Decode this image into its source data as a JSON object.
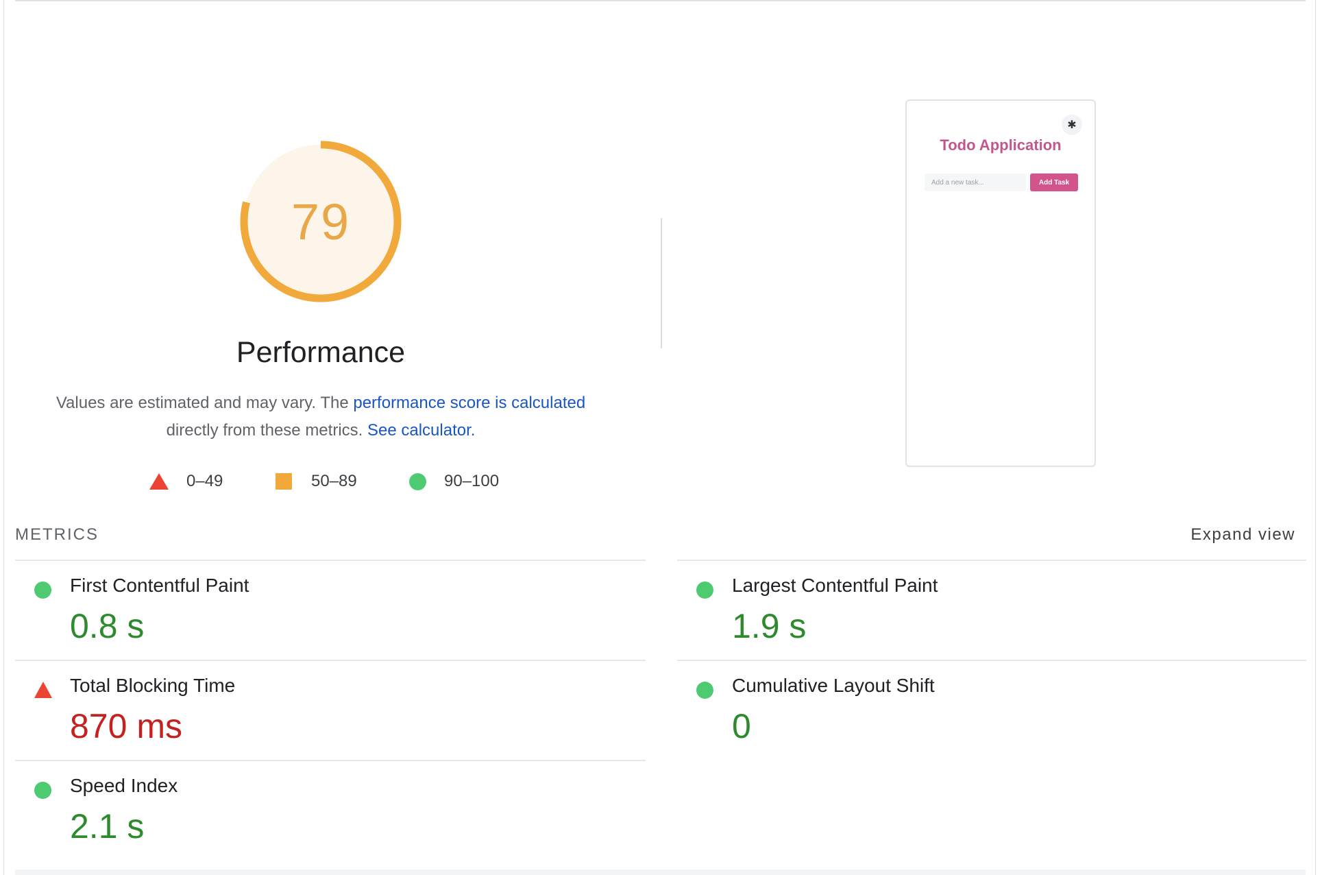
{
  "score": {
    "value": "79",
    "fraction": 0.79,
    "ring_color": "#f2a93b",
    "fill_color": "#fdf5ea",
    "text_color": "#e8a84a"
  },
  "category_title": "Performance",
  "description": {
    "before_link": "Values are estimated and may vary. The ",
    "link1": "performance score is calculated",
    "middle": " directly from these metrics. ",
    "link2": "See calculator."
  },
  "legend": [
    {
      "shape": "triangle",
      "range": "0–49",
      "color": "#eb4434"
    },
    {
      "shape": "square",
      "range": "50–89",
      "color": "#f2a93b"
    },
    {
      "shape": "circle",
      "range": "90–100",
      "color": "#4ecb71"
    }
  ],
  "screenshot": {
    "title": "Todo Application",
    "gear_icon": "✱",
    "input_placeholder": "Add a new task...",
    "button_label": "Add Task"
  },
  "metrics_header": "METRICS",
  "expand_view": "Expand view",
  "metrics": [
    {
      "name": "First Contentful Paint",
      "value": "0.8 s",
      "status": "pass"
    },
    {
      "name": "Largest Contentful Paint",
      "value": "1.9 s",
      "status": "pass"
    },
    {
      "name": "Total Blocking Time",
      "value": "870 ms",
      "status": "fail"
    },
    {
      "name": "Cumulative Layout Shift",
      "value": "0",
      "status": "pass"
    },
    {
      "name": "Speed Index",
      "value": "2.1 s",
      "status": "pass"
    }
  ]
}
